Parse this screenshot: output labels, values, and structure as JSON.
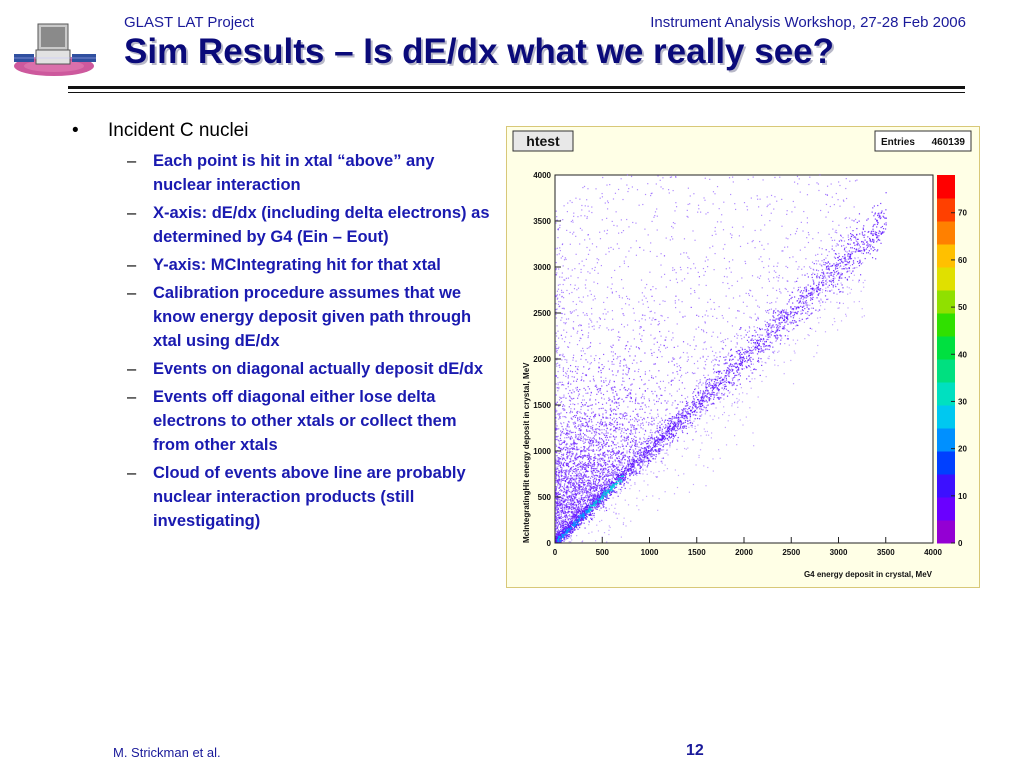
{
  "header": {
    "project": "GLAST LAT Project",
    "workshop": "Instrument Analysis Workshop, 27-28 Feb 2006"
  },
  "title": "Sim Results – Is dE/dx what we really see?",
  "content": {
    "bullet_mark": "•",
    "dash_mark": "–",
    "main_bullet": "Incident C nuclei",
    "sub_bullets": [
      "Each point is hit in xtal “above” any nuclear interaction",
      "X-axis:  dE/dx (including delta electrons) as determined by G4 (Ein – Eout)",
      "Y-axis: MCIntegrating hit for that xtal",
      "Calibration procedure assumes that we know energy deposit given path through xtal using dE/dx",
      "Events on diagonal actually deposit dE/dx",
      "Events off diagonal either lose delta electrons to other xtals or collect them from other xtals",
      "Cloud of events above line are probably nuclear interaction products (still investigating)"
    ]
  },
  "chart_data": {
    "type": "heatmap",
    "title": "htest",
    "stats_label": "Entries",
    "stats_value": "460139",
    "xlabel": "G4 energy deposit in crystal, MeV",
    "ylabel": "McIntegratingHit energy deposit in crystal, MeV",
    "xlim": [
      0,
      4000
    ],
    "ylim": [
      0,
      4000
    ],
    "x_ticks": [
      "0",
      "500",
      "1000",
      "1500",
      "2000",
      "2500",
      "3000",
      "3500",
      "4000"
    ],
    "y_ticks": [
      "0",
      "500",
      "1000",
      "1500",
      "2000",
      "2500",
      "3000",
      "3500",
      "4000"
    ],
    "z_ticks": [
      "0",
      "10",
      "20",
      "30",
      "40",
      "50",
      "60",
      "70"
    ],
    "zlim": [
      0,
      78
    ],
    "palette": [
      "#9400d3",
      "#6a00ff",
      "#3c10ff",
      "#0040ff",
      "#0090ff",
      "#00c8f0",
      "#00e0c0",
      "#00e080",
      "#00e040",
      "#30e000",
      "#90e000",
      "#e0e000",
      "#ffc000",
      "#ff8000",
      "#ff4000",
      "#ff0000"
    ],
    "features": {
      "diagonal": "y = x, dense from 0 to ~3000 MeV, hot spot near 0–800 MeV",
      "cloud": "broad region above diagonal, densest near x 0–800, y 0–2000"
    }
  },
  "footer": {
    "author": "M. Strickman et al.",
    "page": "12"
  }
}
